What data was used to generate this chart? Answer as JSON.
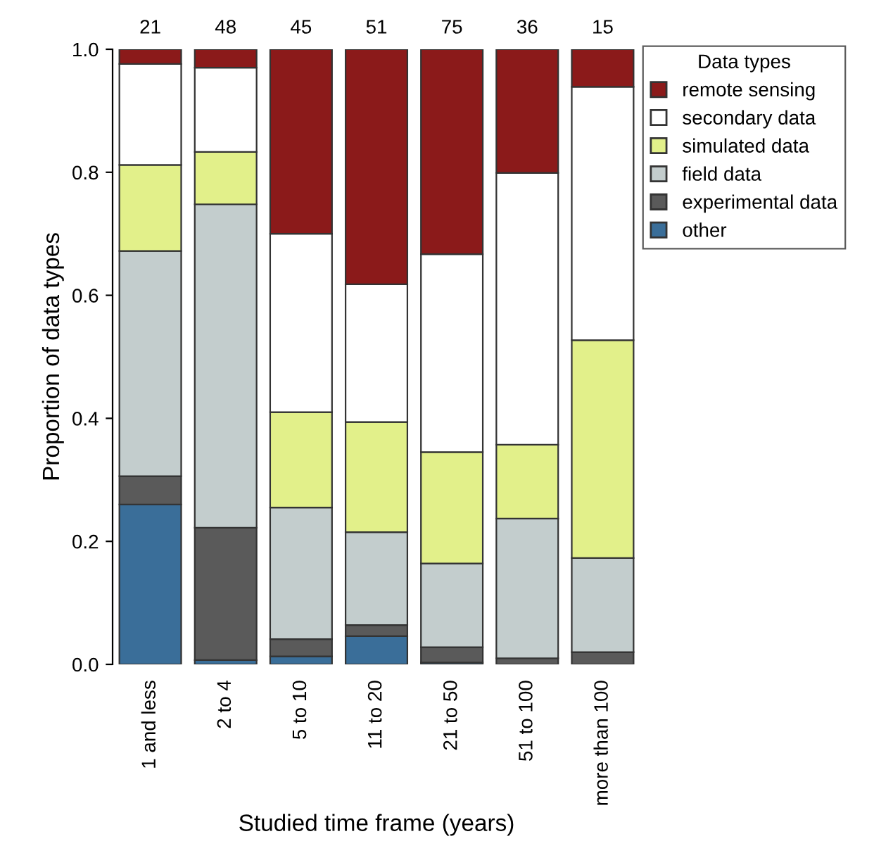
{
  "chart_data": {
    "type": "bar",
    "stacked": true,
    "xlabel": "Studied time frame (years)",
    "ylabel": "Proportion of data types",
    "legend_title": "Data types",
    "legend": "top right",
    "categories": [
      "1 and less",
      "2 to 4",
      "5 to 10",
      "11 to 20",
      "21 to 50",
      "51 to 100",
      "more than 100"
    ],
    "series": [
      {
        "name": "other",
        "color": "#3a6e99",
        "values": [
          0.26,
          0.007,
          0.013,
          0.046,
          0.003,
          0,
          0
        ]
      },
      {
        "name": "experimental data",
        "color": "#5a5a5a",
        "values": [
          0.046,
          0.215,
          0.028,
          0.018,
          0.025,
          0.01,
          0.02
        ]
      },
      {
        "name": "field data",
        "color": "#c3cdcd",
        "values": [
          0.366,
          0.526,
          0.214,
          0.151,
          0.136,
          0.227,
          0.153
        ]
      },
      {
        "name": "simulated data",
        "color": "#e2f08a",
        "values": [
          0.14,
          0.085,
          0.155,
          0.179,
          0.181,
          0.12,
          0.354
        ]
      },
      {
        "name": "secondary data",
        "color": "#ffffff",
        "values": [
          0.164,
          0.137,
          0.29,
          0.224,
          0.322,
          0.442,
          0.412
        ]
      },
      {
        "name": "remote sensing",
        "color": "#8b1a1a",
        "values": [
          0.024,
          0.03,
          0.3,
          0.382,
          0.333,
          0.201,
          0.061
        ]
      }
    ],
    "ylim": [
      0,
      1
    ],
    "yticks": [
      {
        "value": 0,
        "label": "0.0"
      },
      {
        "value": 0.2,
        "label": "0.2"
      },
      {
        "value": 0.4,
        "label": "0.4"
      },
      {
        "value": 0.6,
        "label": "0.6"
      },
      {
        "value": 0.8,
        "label": "0.8"
      },
      {
        "value": 1,
        "label": "1.0"
      }
    ],
    "grid": false,
    "annotations": [
      "21",
      "48",
      "45",
      "51",
      "75",
      "36",
      "15"
    ]
  }
}
